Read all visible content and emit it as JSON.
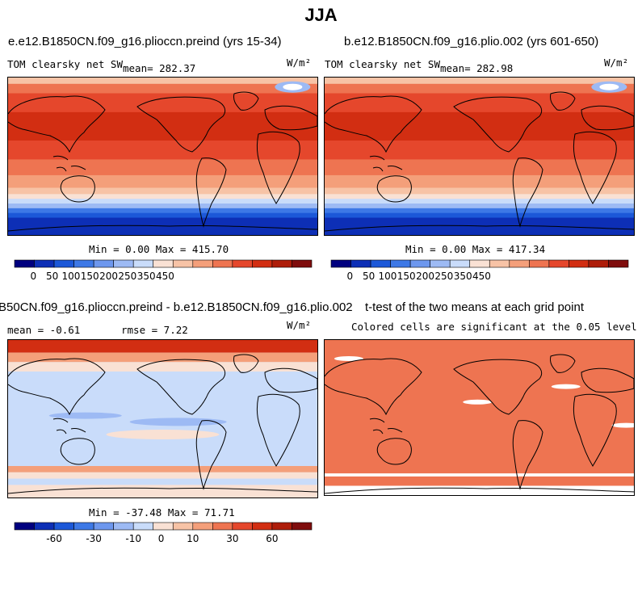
{
  "figure_title": "JJA",
  "panels": [
    {
      "title": "e.e12.B1850CN.f09_g16.plioccn.preind (yrs 15-34)",
      "left_label": "TOM clearsky net SW",
      "stat_label": "mean= 282.37",
      "units": "W/m²",
      "minmax": "Min =    0.00 Max = 415.70"
    },
    {
      "title": "b.e12.B1850CN.f09_g16.plio.002 (yrs 601-650)",
      "left_label": "TOM clearsky net SW",
      "stat_label": "mean= 282.98",
      "units": "W/m²",
      "minmax": "Min =    0.00 Max = 417.34"
    },
    {
      "title": "B50CN.f09_g16.plioccn.preind - b.e12.B1850CN.f09_g16.plio.002",
      "left_label": "mean =  -0.61",
      "stat_label": "rmse =   7.22",
      "units": "W/m²",
      "minmax": "Min = -37.48 Max =  71.71"
    },
    {
      "title": "t-test of the two means at each grid point",
      "subtitle": "Colored cells are significant at the 0.05 level"
    }
  ],
  "colorbar_abs": {
    "colors": [
      "#00007f",
      "#0d2fb6",
      "#1c58d8",
      "#3d78e6",
      "#6d97ee",
      "#9dbaf4",
      "#c9dcfa",
      "#f9e1d4",
      "#f7c3a6",
      "#f49f7a",
      "#ee7451",
      "#e5472c",
      "#d22e12",
      "#ae1d0a",
      "#7f0d0d"
    ],
    "tick_labels": [
      "0",
      "50",
      "100",
      "150",
      "200",
      "250",
      "350",
      "450"
    ]
  },
  "colorbar_diff": {
    "colors": [
      "#00007f",
      "#0d2fb6",
      "#1c58d8",
      "#3d78e6",
      "#6d97ee",
      "#9dbaf4",
      "#c9dcfa",
      "#f9e1d4",
      "#f7c3a6",
      "#f49f7a",
      "#ee7451",
      "#e5472c",
      "#d22e12",
      "#ae1d0a",
      "#7f0d0d"
    ],
    "tick_labels": [
      "-60",
      "-30",
      "-10",
      "0",
      "10",
      "30",
      "60"
    ]
  },
  "chart_data": [
    {
      "type": "heatmap",
      "title": "e.e12.B1850CN.f09_g16.plioccn.preind (yrs 15-34)",
      "field": "TOM clearsky net SW",
      "season": "JJA",
      "units": "W/m²",
      "mean": 282.37,
      "min": 0.0,
      "max": 415.7,
      "zonal_pattern_lat": [
        90,
        60,
        40,
        20,
        0,
        -20,
        -40,
        -60,
        -90
      ],
      "zonal_pattern_value": [
        405,
        395,
        360,
        385,
        350,
        320,
        200,
        60,
        0
      ]
    },
    {
      "type": "heatmap",
      "title": "b.e12.B1850CN.f09_g16.plio.002 (yrs 601-650)",
      "field": "TOM clearsky net SW",
      "season": "JJA",
      "units": "W/m²",
      "mean": 282.98,
      "min": 0.0,
      "max": 417.34,
      "zonal_pattern_lat": [
        90,
        60,
        40,
        20,
        0,
        -20,
        -40,
        -60,
        -90
      ],
      "zonal_pattern_value": [
        405,
        395,
        360,
        385,
        350,
        320,
        200,
        60,
        0
      ]
    },
    {
      "type": "heatmap",
      "title": "B50CN.f09_g16.plioccn.preind - b.e12.B1850CN.f09_g16.plio.002",
      "units": "W/m²",
      "mean": -0.61,
      "rmse": 7.22,
      "min": -37.48,
      "max": 71.71
    },
    {
      "type": "heatmap",
      "title": "t-test of the two means at each grid point",
      "note": "Colored cells are significant at the 0.05 level"
    }
  ]
}
